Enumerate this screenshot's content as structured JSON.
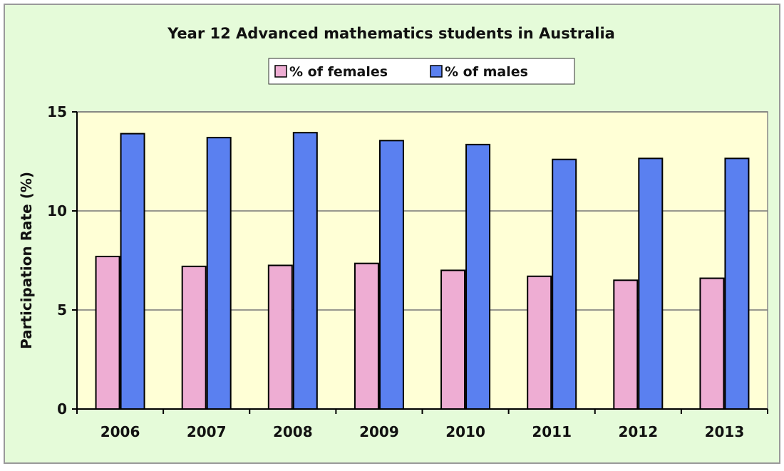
{
  "colors": {
    "outer_background": "#e5fbd9",
    "plot_background": "#ffffd6",
    "frame_border": "#999999",
    "female_bar": "#eeadd3",
    "male_bar": "#5a80f0",
    "bar_outline": "#000000",
    "gridline": "#777777"
  },
  "chart_data": {
    "type": "bar",
    "title": "Year 12 Advanced mathematics students in Australia",
    "xlabel": "",
    "ylabel": "Participation Rate (%)",
    "ylim": [
      0,
      15
    ],
    "yticks": [
      0,
      5,
      10,
      15
    ],
    "grid": true,
    "legend_position": "top",
    "categories": [
      "2006",
      "2007",
      "2008",
      "2009",
      "2010",
      "2011",
      "2012",
      "2013"
    ],
    "series": [
      {
        "name": "% of females",
        "color": "#eeadd3",
        "values": [
          7.7,
          7.2,
          7.25,
          7.35,
          7.0,
          6.7,
          6.5,
          6.6
        ]
      },
      {
        "name": "% of males",
        "color": "#5a80f0",
        "values": [
          13.9,
          13.7,
          13.95,
          13.55,
          13.35,
          12.6,
          12.65,
          12.65
        ]
      }
    ]
  }
}
